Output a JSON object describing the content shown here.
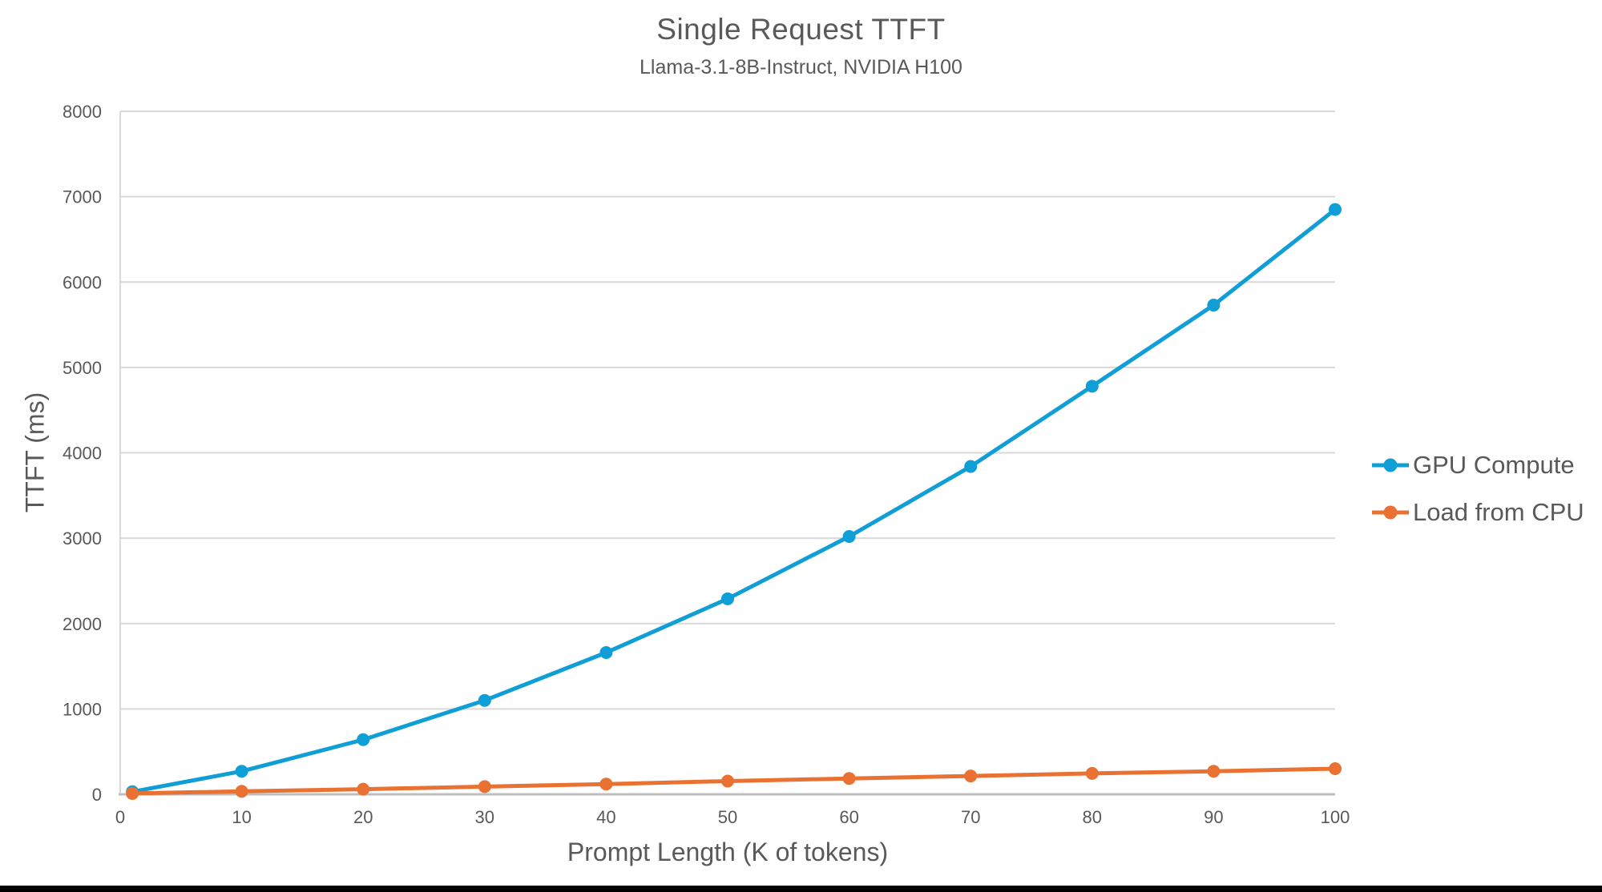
{
  "chart_data": {
    "type": "line",
    "title": "Single Request TTFT",
    "subtitle": "Llama-3.1-8B-Instruct, NVIDIA H100",
    "xlabel": "Prompt Length (K of tokens)",
    "ylabel": "TTFT (ms)",
    "x": [
      1,
      10,
      20,
      30,
      40,
      50,
      60,
      70,
      80,
      90,
      100
    ],
    "series": [
      {
        "name": "GPU Compute",
        "color": "#0F9ED5",
        "values": [
          30,
          270,
          640,
          1100,
          1660,
          2290,
          3020,
          3840,
          4780,
          5730,
          6850
        ]
      },
      {
        "name": "Load from CPU",
        "color": "#E97132",
        "values": [
          10,
          35,
          60,
          90,
          120,
          155,
          185,
          215,
          245,
          270,
          300
        ]
      }
    ],
    "xlim": [
      0,
      100
    ],
    "ylim": [
      0,
      8000
    ],
    "xticks": [
      0,
      10,
      20,
      30,
      40,
      50,
      60,
      70,
      80,
      90,
      100
    ],
    "yticks": [
      0,
      1000,
      2000,
      3000,
      4000,
      5000,
      6000,
      7000,
      8000
    ],
    "grid": true,
    "legend_position": "right",
    "marker": "circle"
  },
  "colors": {
    "text": "#595959",
    "gridline": "#D9D9D9",
    "axis_line": "#BFBFBF",
    "background": "#FFFFFF",
    "bottom_bar": "#000000"
  }
}
